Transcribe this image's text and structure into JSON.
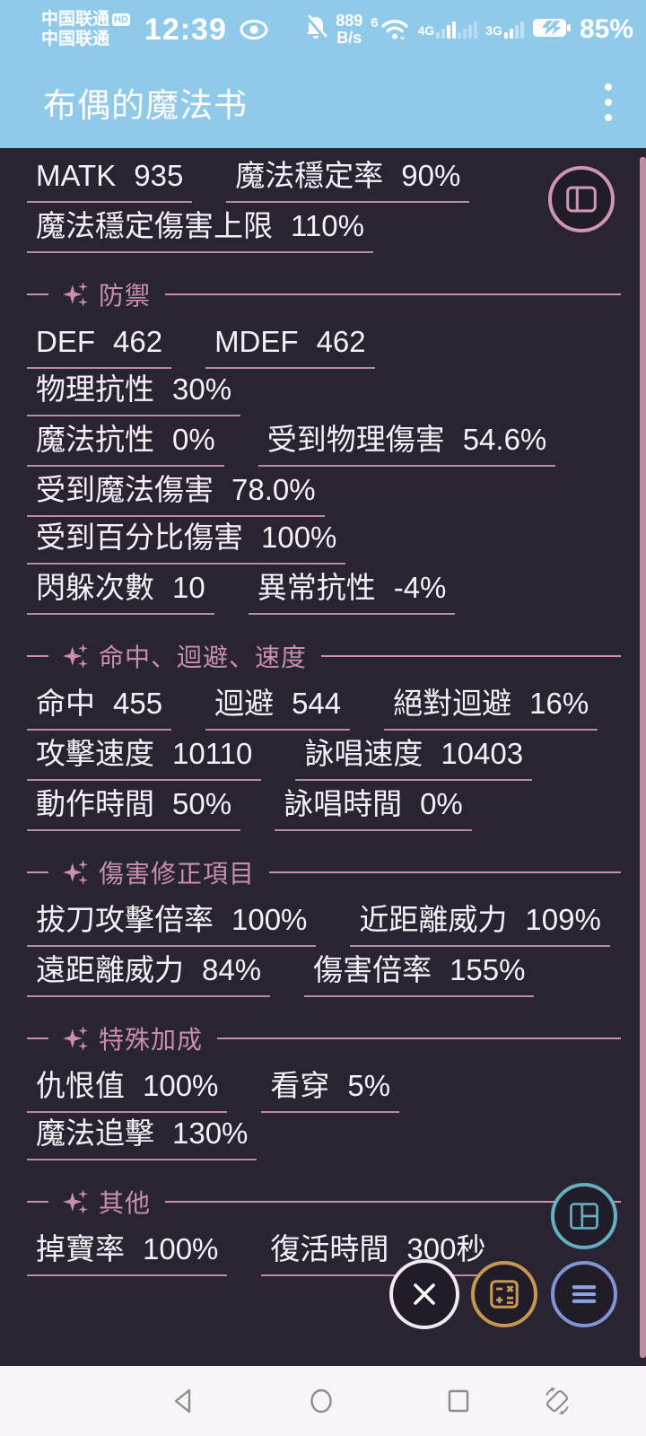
{
  "status_bar": {
    "carrier_line1": "中国联通",
    "hd_badge": "HD",
    "carrier_line2": "中国联通",
    "time": "12:39",
    "net_speed_value": "889",
    "net_speed_unit": "B/s",
    "wifi_band": "6",
    "sim1_label": "4G",
    "sim2_label": "3G",
    "battery_percent": "85%"
  },
  "app_bar": {
    "title": "布偶的魔法书"
  },
  "sections": [
    {
      "title": "",
      "rows": [
        [
          {
            "label": "MATK",
            "value": "935"
          },
          {
            "label": "魔法穩定率",
            "value": "90%"
          }
        ],
        [
          {
            "label": "魔法穩定傷害上限",
            "value": "110%"
          }
        ]
      ]
    },
    {
      "title": "防禦",
      "rows": [
        [
          {
            "label": "DEF",
            "value": "462"
          },
          {
            "label": "MDEF",
            "value": "462"
          },
          {
            "label": "物理抗性",
            "value": "30%"
          }
        ],
        [
          {
            "label": "魔法抗性",
            "value": "0%"
          },
          {
            "label": "受到物理傷害",
            "value": "54.6%"
          }
        ],
        [
          {
            "label": "受到魔法傷害",
            "value": "78.0%"
          },
          {
            "label": "受到百分比傷害",
            "value": "100%"
          }
        ],
        [
          {
            "label": "閃躲次數",
            "value": "10"
          },
          {
            "label": "異常抗性",
            "value": "-4%"
          }
        ]
      ]
    },
    {
      "title": "命中、迴避、速度",
      "rows": [
        [
          {
            "label": "命中",
            "value": "455"
          },
          {
            "label": "迴避",
            "value": "544"
          },
          {
            "label": "絕對迴避",
            "value": "16%"
          }
        ],
        [
          {
            "label": "攻擊速度",
            "value": "10110"
          },
          {
            "label": "詠唱速度",
            "value": "10403"
          }
        ],
        [
          {
            "label": "動作時間",
            "value": "50%"
          },
          {
            "label": "詠唱時間",
            "value": "0%"
          }
        ]
      ]
    },
    {
      "title": "傷害修正項目",
      "rows": [
        [
          {
            "label": "拔刀攻擊倍率",
            "value": "100%"
          },
          {
            "label": "近距離威力",
            "value": "109%"
          }
        ],
        [
          {
            "label": "遠距離威力",
            "value": "84%"
          },
          {
            "label": "傷害倍率",
            "value": "155%"
          }
        ]
      ]
    },
    {
      "title": "特殊加成",
      "rows": [
        [
          {
            "label": "仇恨值",
            "value": "100%"
          },
          {
            "label": "看穿",
            "value": "5%"
          },
          {
            "label": "魔法追擊",
            "value": "130%"
          }
        ]
      ]
    },
    {
      "title": "其他",
      "rows": [
        [
          {
            "label": "掉寶率",
            "value": "100%"
          },
          {
            "label": "復活時間",
            "value": "300秒"
          }
        ]
      ]
    }
  ],
  "icons": {
    "app_bar_menu": "more-vert-icon",
    "status_left": [
      "mute-bell-icon",
      "wifi-icon",
      "signal-bars-icon",
      "battery-charging-icon",
      "eye-icon"
    ],
    "fab_top_right": "split-view-icon",
    "fab_layout": "dashboard-icon",
    "fab_close": "close-icon",
    "fab_calculator": "calculator-icon",
    "fab_menu": "menu-icon",
    "nav_buttons": [
      "back-icon",
      "home-icon",
      "recents-icon",
      "rotate-icon"
    ]
  },
  "colors": {
    "app_bar_blue": "#90CAEA",
    "background_dark": "#292431",
    "accent_pink": "#C38BA3",
    "fab_teal": "#67AEC2",
    "fab_gold": "#C8984F",
    "fab_periwinkle": "#8095D6"
  }
}
